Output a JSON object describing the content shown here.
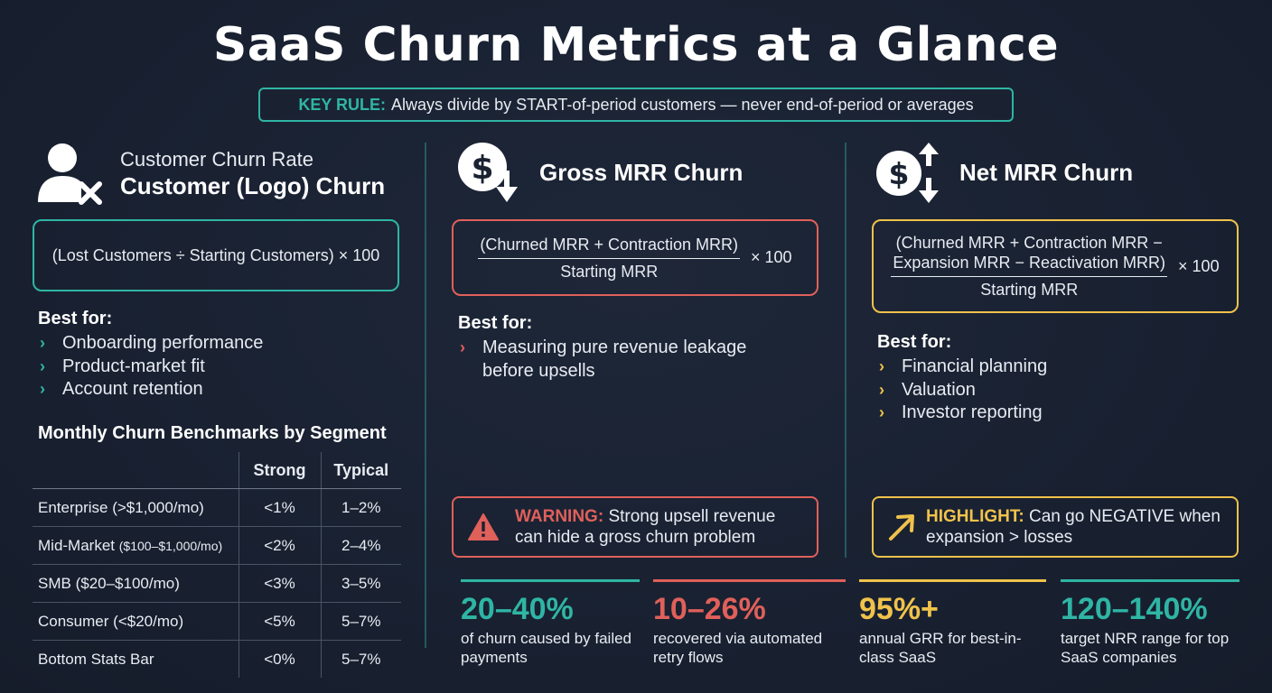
{
  "title": "SaaS Churn Metrics at a Glance",
  "key_rule": {
    "label": "KEY RULE:",
    "text": "Always divide by START-of-period customers — never end-of-period or averages"
  },
  "colors": {
    "teal": "#2fb5a4",
    "red": "#e0605a",
    "yellow": "#f0c24b",
    "background": "#1a2232"
  },
  "customer_churn": {
    "icon": "user-x-icon",
    "subtitle": "Customer Churn Rate",
    "title": "Customer (Logo) Churn",
    "formula": "(Lost Customers ÷ Starting Customers) × 100",
    "best_for_label": "Best for:",
    "best_for": [
      "Onboarding performance",
      "Product-market fit",
      "Account retention"
    ]
  },
  "benchmarks": {
    "title": "Monthly Churn Benchmarks by Segment",
    "columns": [
      "",
      "Strong",
      "Typical"
    ],
    "rows": [
      {
        "segment": "Enterprise",
        "range": "(>$1,000/mo)",
        "strong": "<1%",
        "typical": "1–2%"
      },
      {
        "segment": "Mid-Market",
        "range": "($100–$1,000/mo)",
        "strong": "<2%",
        "typical": "2–4%"
      },
      {
        "segment": "SMB",
        "range": "($20–$100/mo)",
        "strong": "<3%",
        "typical": "3–5%"
      },
      {
        "segment": "Consumer",
        "range": "(<$20/mo)",
        "strong": "<5%",
        "typical": "5–7%"
      },
      {
        "segment": "Bottom Stats Bar",
        "range": "",
        "strong": "<0%",
        "typical": "5–7%"
      }
    ]
  },
  "gross_mrr": {
    "icon": "dollar-down-icon",
    "title": "Gross MRR Churn",
    "numerator": "(Churned MRR + Contraction MRR)",
    "denominator": "Starting MRR",
    "times": "× 100",
    "best_for_label": "Best for:",
    "best_for": [
      "Measuring pure revenue leakage before upsells"
    ],
    "warning_label": "WARNING:",
    "warning_text": "Strong upsell revenue can hide a gross churn problem"
  },
  "net_mrr": {
    "icon": "dollar-up-down-icon",
    "title": "Net MRR Churn",
    "numerator_line1": "(Churned MRR + Contraction MRR −",
    "numerator_line2": "Expansion MRR − Reactivation MRR)",
    "denominator": "Starting MRR",
    "times": "× 100",
    "best_for_label": "Best for:",
    "best_for": [
      "Financial planning",
      "Valuation",
      "Investor reporting"
    ],
    "highlight_label": "HIGHLIGHT:",
    "highlight_text": "Can go NEGATIVE when expansion > losses"
  },
  "stats": [
    {
      "value": "20–40%",
      "desc": "of churn caused by failed payments",
      "color": "#2fb5a4"
    },
    {
      "value": "10–26%",
      "desc": "recovered via automated retry flows",
      "color": "#e0605a"
    },
    {
      "value": "95%+",
      "desc": "annual GRR for best-in-class SaaS",
      "color": "#f0c24b"
    },
    {
      "value": "120–140%",
      "desc": "target NRR range for top SaaS companies",
      "color": "#2fb5a4"
    }
  ]
}
